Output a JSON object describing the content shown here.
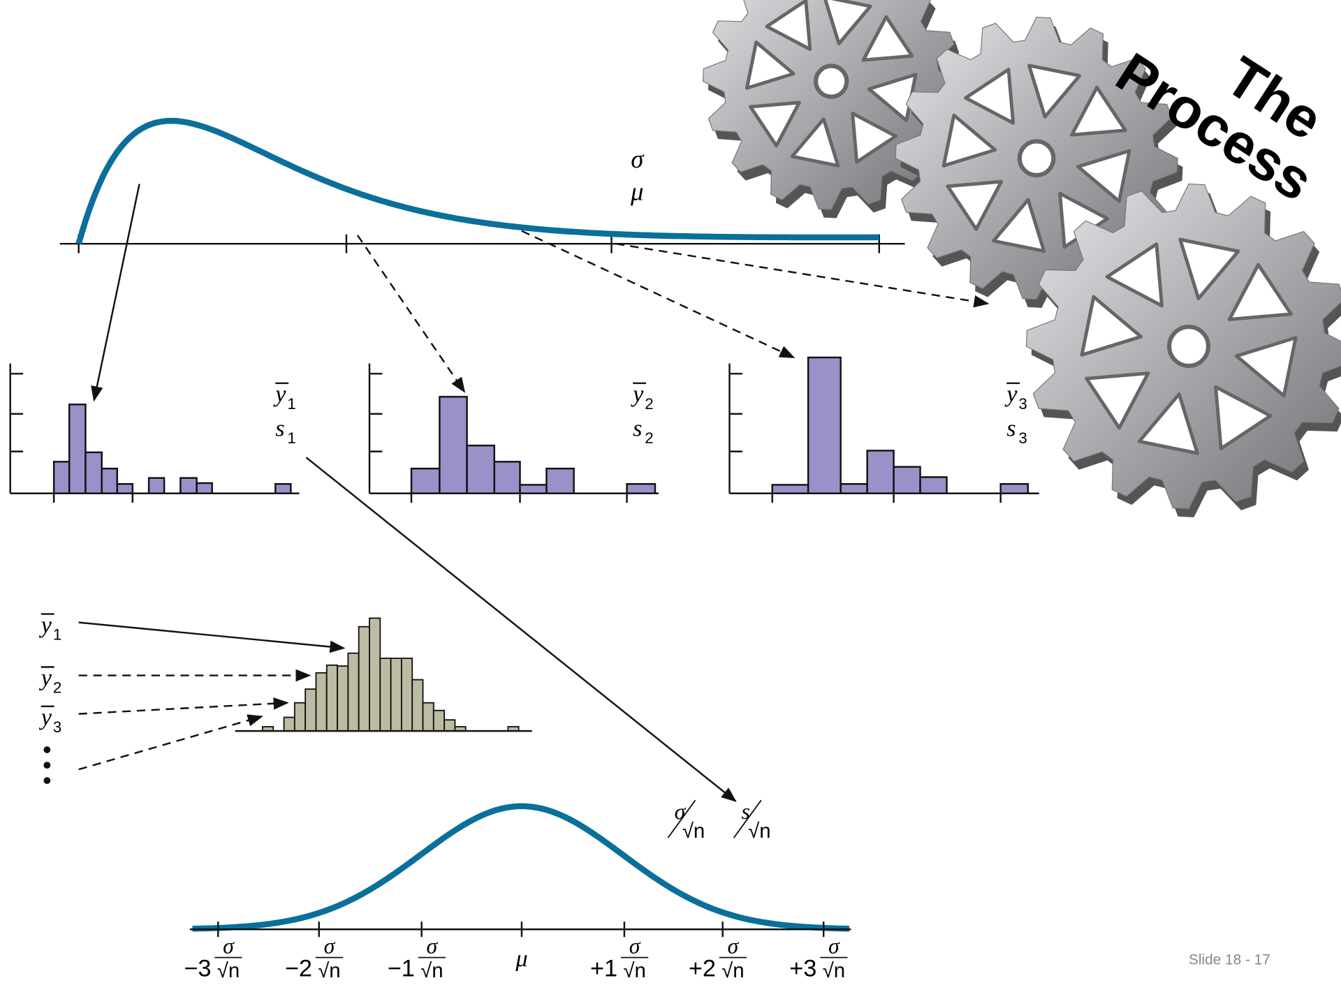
{
  "title": [
    "The",
    "Process"
  ],
  "population": {
    "sigma": "σ",
    "mu": "μ"
  },
  "samples": [
    {
      "mean": [
        "y",
        "1"
      ],
      "sd": [
        "s",
        "1"
      ]
    },
    {
      "mean": [
        "y",
        "2"
      ],
      "sd": [
        "s",
        "2"
      ]
    },
    {
      "mean": [
        "y",
        "3"
      ],
      "sd": [
        "s",
        "3"
      ]
    }
  ],
  "sample_means": [
    [
      "y",
      "1"
    ],
    [
      "y",
      "2"
    ],
    [
      "y",
      "3"
    ]
  ],
  "standard_errors": {
    "sigma": [
      "σ",
      "√n"
    ],
    "s": [
      "s",
      "√n"
    ]
  },
  "axis_ticks": [
    [
      "−3",
      "σ",
      "√n"
    ],
    [
      "−2",
      "σ",
      "√n"
    ],
    [
      "−1",
      "σ",
      "√n"
    ],
    [
      "μ"
    ],
    [
      "+1",
      "σ",
      "√n"
    ],
    [
      "+2",
      "σ",
      "√n"
    ],
    [
      "+3",
      "σ",
      "√n"
    ]
  ],
  "footer": "Slide 18 - 17"
}
